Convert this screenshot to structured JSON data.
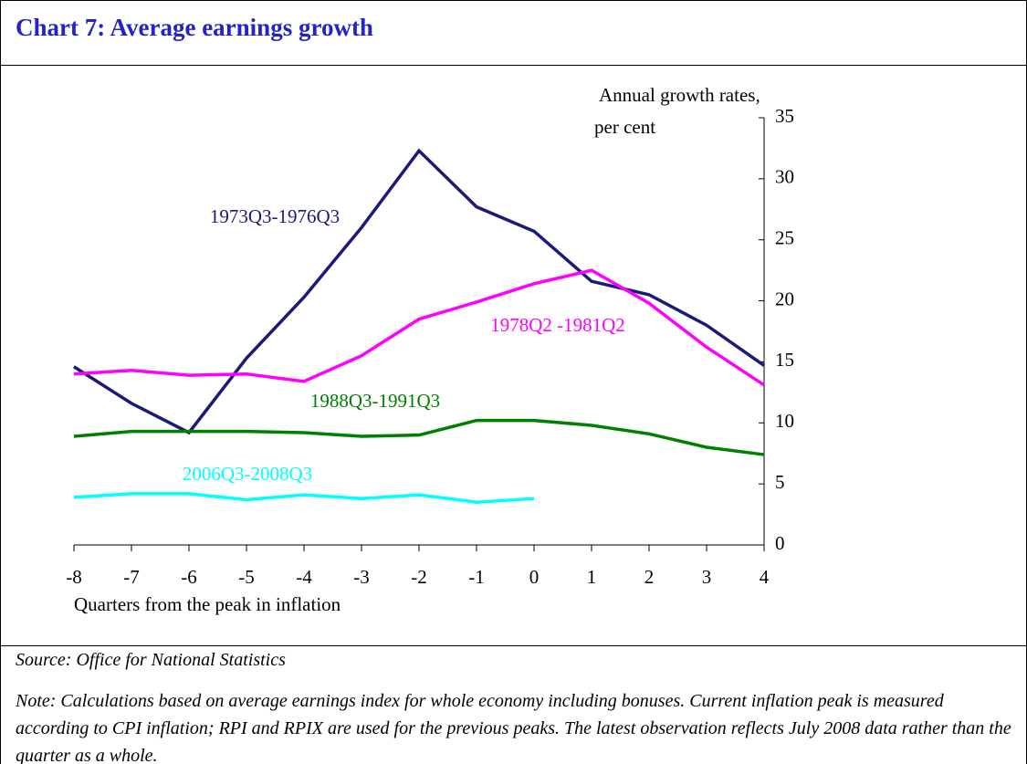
{
  "chart_data": {
    "type": "line",
    "title": "Chart 7: Average earnings growth",
    "y_label_lines": [
      "Annual growth rates,",
      "per cent"
    ],
    "x_label": "Quarters from the peak in inflation",
    "x": [
      -8,
      -7,
      -6,
      -5,
      -4,
      -3,
      -2,
      -1,
      0,
      1,
      2,
      3,
      4
    ],
    "xlim": [
      -8,
      4
    ],
    "xticks": [
      -8,
      -7,
      -6,
      -5,
      -4,
      -3,
      -2,
      -1,
      0,
      1,
      2,
      3,
      4
    ],
    "ylim": [
      0,
      35
    ],
    "yticks": [
      0,
      5,
      10,
      15,
      20,
      25,
      30,
      35
    ],
    "series": [
      {
        "name": "1973Q3-1976Q3",
        "color": "#1a1a78",
        "values": [
          14.6,
          11.6,
          9.2,
          15.3,
          20.3,
          26.0,
          32.3,
          27.7,
          25.7,
          21.6,
          20.5,
          18.0,
          14.7
        ]
      },
      {
        "name": "1978Q2 -1981Q2",
        "color": "#ff00ff",
        "values": [
          14.0,
          14.3,
          13.9,
          14.0,
          13.4,
          15.5,
          18.5,
          19.9,
          21.4,
          22.5,
          19.8,
          16.2,
          13.1
        ]
      },
      {
        "name": "1988Q3-1991Q3",
        "color": "#008000",
        "values": [
          8.9,
          9.3,
          9.3,
          9.3,
          9.2,
          8.9,
          9.0,
          10.2,
          10.2,
          9.8,
          9.1,
          8.0,
          7.4
        ]
      },
      {
        "name": "2006Q3-2008Q3",
        "color": "#00ffff",
        "values": [
          3.9,
          4.2,
          4.2,
          3.7,
          4.1,
          3.8,
          4.1,
          3.5,
          3.8,
          null,
          null,
          null,
          null
        ]
      }
    ],
    "source": "Source: Office for National Statistics",
    "note": "Note: Calculations based on average earnings index for whole economy including bonuses. Current inflation peak  is measured according to CPI inflation; RPI and RPIX are used for the previous peaks. The latest observation reflects July 2008 data rather than the quarter as a whole."
  }
}
